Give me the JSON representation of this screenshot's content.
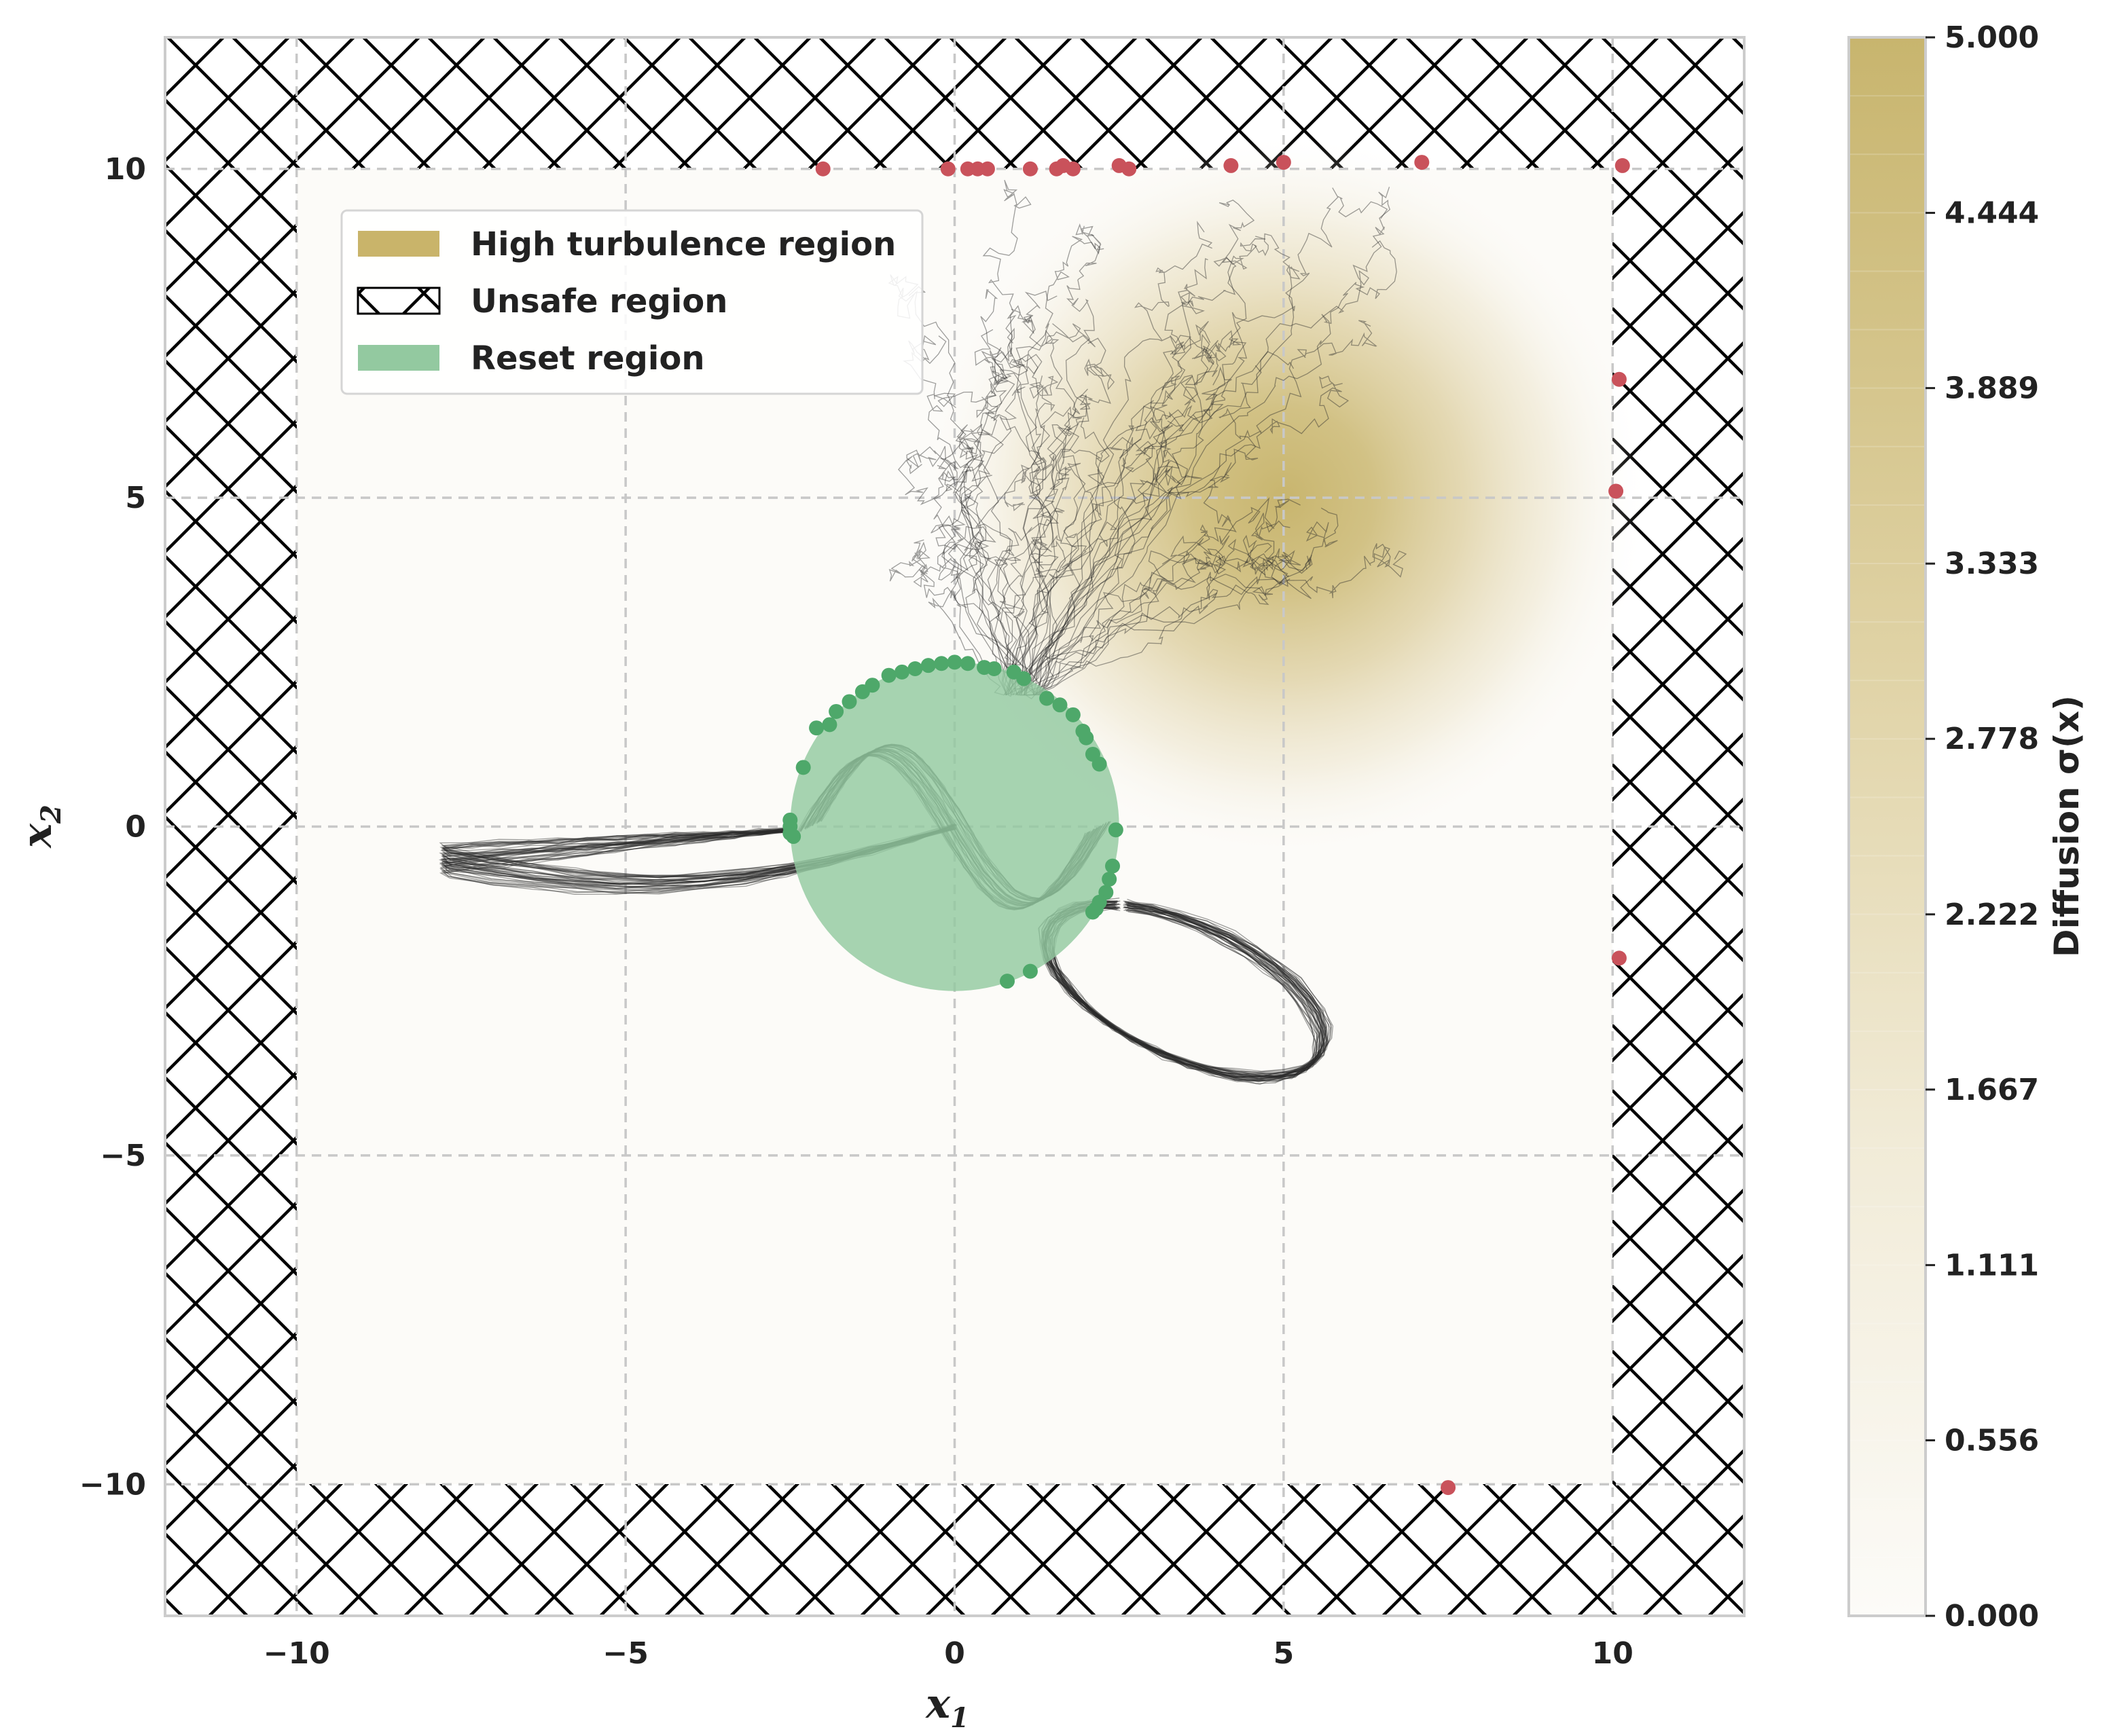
{
  "chart_data": {
    "type": "scatter",
    "xlabel": "x",
    "xlabel_sub": "1",
    "ylabel": "x",
    "ylabel_sub": "2",
    "xlim": [
      -12,
      12
    ],
    "ylim": [
      -12,
      12
    ],
    "xticks": [
      -10,
      -5,
      0,
      5,
      10
    ],
    "yticks": [
      -10,
      -5,
      0,
      5,
      10
    ],
    "xtick_labels": [
      "−10",
      "−5",
      "0",
      "5",
      "10"
    ],
    "ytick_labels": [
      "−10",
      "−5",
      "0",
      "5",
      "10"
    ],
    "grid": true,
    "safe_box": {
      "x": [
        -10,
        10
      ],
      "y": [
        -10,
        10
      ]
    },
    "reset_region": {
      "center": [
        0,
        0
      ],
      "radius": 2.5
    },
    "turbulence": {
      "center": [
        5,
        5
      ],
      "peak": 5.0,
      "sigma": 2.2
    },
    "legend": {
      "placement": "upper-left",
      "entries": [
        {
          "label": "High turbulence region",
          "kind": "patch",
          "color": "#c9b46a"
        },
        {
          "label": "Unsafe region",
          "kind": "hatch",
          "color": "#000000"
        },
        {
          "label": "Reset region",
          "kind": "patch",
          "color": "#93c9a0"
        }
      ]
    },
    "colorbar": {
      "label": "Diffusion σ(x)",
      "min": 0.0,
      "max": 5.0,
      "ticks": [
        "0.000",
        "0.556",
        "1.111",
        "1.667",
        "2.222",
        "2.778",
        "3.333",
        "3.889",
        "4.444",
        "5.000"
      ],
      "color_low": "#fcfbf8",
      "color_high": "#c8b56e"
    },
    "unsafe_exit_points": [
      [
        -2.0,
        10.0
      ],
      [
        -0.1,
        10.0
      ],
      [
        0.2,
        10.0
      ],
      [
        0.35,
        10.0
      ],
      [
        0.5,
        10.0
      ],
      [
        1.15,
        10.0
      ],
      [
        1.55,
        10.0
      ],
      [
        1.65,
        10.05
      ],
      [
        1.8,
        10.0
      ],
      [
        2.5,
        10.05
      ],
      [
        2.65,
        10.0
      ],
      [
        4.2,
        10.05
      ],
      [
        5.0,
        10.1
      ],
      [
        7.1,
        10.1
      ],
      [
        10.15,
        10.05
      ],
      [
        10.1,
        6.8
      ],
      [
        10.05,
        5.1
      ],
      [
        10.1,
        -2.0
      ],
      [
        7.5,
        -10.05
      ]
    ],
    "reset_hit_points": [
      [
        -2.5,
        0.0
      ],
      [
        -2.5,
        -0.1
      ],
      [
        -2.5,
        0.1
      ],
      [
        -2.45,
        -0.15
      ],
      [
        -2.3,
        0.9
      ],
      [
        -2.1,
        1.5
      ],
      [
        -1.9,
        1.55
      ],
      [
        -1.8,
        1.75
      ],
      [
        -1.6,
        1.9
      ],
      [
        -1.4,
        2.05
      ],
      [
        -1.25,
        2.15
      ],
      [
        -1.0,
        2.3
      ],
      [
        -0.8,
        2.35
      ],
      [
        -0.6,
        2.4
      ],
      [
        -0.4,
        2.45
      ],
      [
        -0.2,
        2.48
      ],
      [
        0.0,
        2.5
      ],
      [
        0.2,
        2.48
      ],
      [
        0.45,
        2.42
      ],
      [
        0.6,
        2.4
      ],
      [
        0.9,
        2.35
      ],
      [
        1.05,
        2.25
      ],
      [
        1.4,
        1.95
      ],
      [
        1.6,
        1.85
      ],
      [
        1.8,
        1.7
      ],
      [
        1.95,
        1.45
      ],
      [
        2.0,
        1.35
      ],
      [
        2.1,
        1.1
      ],
      [
        2.2,
        0.95
      ],
      [
        2.45,
        -0.05
      ],
      [
        2.4,
        -0.6
      ],
      [
        2.35,
        -0.8
      ],
      [
        2.3,
        -1.0
      ],
      [
        2.2,
        -1.15
      ],
      [
        2.15,
        -1.25
      ],
      [
        2.1,
        -1.3
      ],
      [
        0.8,
        -2.35
      ],
      [
        1.15,
        -2.2
      ]
    ]
  }
}
